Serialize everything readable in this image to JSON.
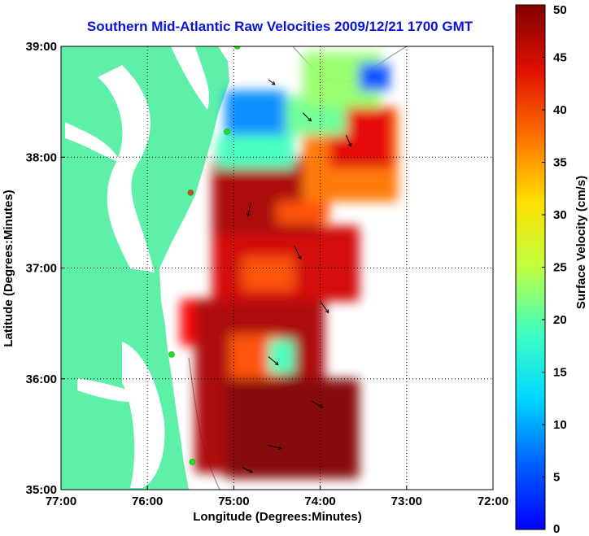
{
  "chart_data": {
    "type": "map",
    "title": "Southern Mid-Atlantic Raw Velocities 2009/12/21 1700 GMT",
    "xlabel": "Longitude (Degrees:Minutes)",
    "ylabel": "Latitude (Degrees:Minutes)",
    "xlim": [
      -77,
      -72
    ],
    "ylim": [
      35,
      39
    ],
    "x_ticks": [
      {
        "value": -77,
        "label": "77:00"
      },
      {
        "value": -76,
        "label": "76:00"
      },
      {
        "value": -75,
        "label": "75:00"
      },
      {
        "value": -74,
        "label": "74:00"
      },
      {
        "value": -73,
        "label": "73:00"
      },
      {
        "value": -72,
        "label": "72:00"
      }
    ],
    "y_ticks": [
      {
        "value": 39,
        "label": "39:00"
      },
      {
        "value": 38,
        "label": "38:00"
      },
      {
        "value": 37,
        "label": "37:00"
      },
      {
        "value": 36,
        "label": "36:00"
      },
      {
        "value": 35,
        "label": "35:00"
      }
    ],
    "grid": "dotted",
    "colorbar": {
      "label": "Surface Velocity (cm/s)",
      "min": 0,
      "max": 50,
      "ticks": [
        {
          "value": 0,
          "label": "0"
        },
        {
          "value": 5,
          "label": "5"
        },
        {
          "value": 10,
          "label": "10"
        },
        {
          "value": 15,
          "label": "15"
        },
        {
          "value": 20,
          "label": "20"
        },
        {
          "value": 25,
          "label": "25"
        },
        {
          "value": 30,
          "label": "30"
        },
        {
          "value": 35,
          "label": "35"
        },
        {
          "value": 40,
          "label": "40"
        },
        {
          "value": 45,
          "label": "45"
        },
        {
          "value": 50,
          "label": "50"
        }
      ],
      "colormap": "jet"
    },
    "colors": {
      "land": "#5ef0a8",
      "water": "#ffffff",
      "title": "#0a14d8",
      "station": "#22dd22",
      "station_alt": "#e2402a"
    },
    "field_regions": [
      {
        "lon": [
          -75.62,
          -74.95
        ],
        "lat": [
          36.3,
          36.72
        ],
        "speed": 44
      },
      {
        "lon": [
          -75.45,
          -73.95
        ],
        "lat": [
          35.15,
          36.72
        ],
        "speed": 48
      },
      {
        "lon": [
          -75.1,
          -73.55
        ],
        "lat": [
          35.1,
          36.0
        ],
        "speed": 50
      },
      {
        "lon": [
          -75.05,
          -74.45
        ],
        "lat": [
          36.0,
          36.4
        ],
        "speed": 40
      },
      {
        "lon": [
          -74.6,
          -74.3
        ],
        "lat": [
          36.05,
          36.35
        ],
        "speed": 22
      },
      {
        "lon": [
          -75.25,
          -73.55
        ],
        "lat": [
          36.7,
          37.38
        ],
        "speed": 46
      },
      {
        "lon": [
          -74.9,
          -74.3
        ],
        "lat": [
          36.8,
          37.1
        ],
        "speed": 40
      },
      {
        "lon": [
          -75.25,
          -74.0
        ],
        "lat": [
          37.3,
          38.0
        ],
        "speed": 48
      },
      {
        "lon": [
          -74.5,
          -73.9
        ],
        "lat": [
          37.4,
          37.6
        ],
        "speed": 40
      },
      {
        "lon": [
          -74.2,
          -73.1
        ],
        "lat": [
          37.6,
          38.45
        ],
        "speed": 38
      },
      {
        "lon": [
          -73.9,
          -73.15
        ],
        "lat": [
          37.9,
          38.45
        ],
        "speed": 45
      },
      {
        "lon": [
          -75.2,
          -74.3
        ],
        "lat": [
          37.9,
          38.2
        ],
        "speed": 22
      },
      {
        "lon": [
          -74.7,
          -73.7
        ],
        "lat": [
          38.2,
          38.55
        ],
        "speed": 24
      },
      {
        "lon": [
          -75.1,
          -74.4
        ],
        "lat": [
          38.2,
          38.6
        ],
        "speed": 13
      },
      {
        "lon": [
          -74.2,
          -73.3
        ],
        "lat": [
          38.45,
          38.95
        ],
        "speed": 26
      },
      {
        "lon": [
          -73.55,
          -73.2
        ],
        "lat": [
          38.6,
          38.85
        ],
        "speed": 10
      }
    ],
    "vectors": [
      {
        "lon": -74.6,
        "lat": 38.7,
        "u": 8,
        "v": -6
      },
      {
        "lon": -74.2,
        "lat": 38.4,
        "u": 10,
        "v": -10
      },
      {
        "lon": -73.7,
        "lat": 38.2,
        "u": 6,
        "v": -14
      },
      {
        "lon": -74.8,
        "lat": 37.6,
        "u": -4,
        "v": -18
      },
      {
        "lon": -74.3,
        "lat": 37.2,
        "u": 8,
        "v": -16
      },
      {
        "lon": -74.0,
        "lat": 36.7,
        "u": 10,
        "v": -14
      },
      {
        "lon": -74.6,
        "lat": 36.2,
        "u": 12,
        "v": -10
      },
      {
        "lon": -74.1,
        "lat": 35.8,
        "u": 14,
        "v": -8
      },
      {
        "lon": -74.6,
        "lat": 35.4,
        "u": 16,
        "v": -4
      },
      {
        "lon": -74.9,
        "lat": 35.2,
        "u": 12,
        "v": -6
      }
    ],
    "stations": [
      {
        "lon": -74.96,
        "lat": 39.0,
        "kind": "station"
      },
      {
        "lon": -75.08,
        "lat": 38.23,
        "kind": "station"
      },
      {
        "lon": -75.5,
        "lat": 37.68,
        "kind": "station_alt"
      },
      {
        "lon": -75.72,
        "lat": 36.22,
        "kind": "station"
      },
      {
        "lon": -75.48,
        "lat": 35.25,
        "kind": "station"
      }
    ]
  }
}
